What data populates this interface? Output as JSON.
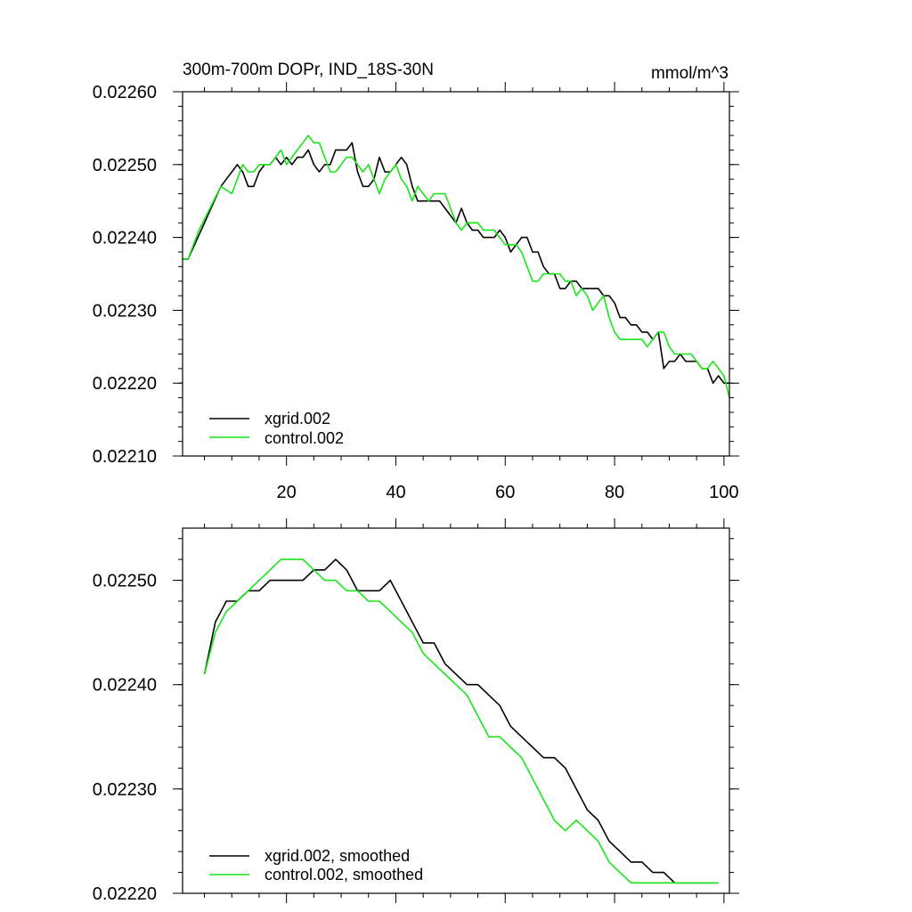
{
  "colors": {
    "xgrid": "#000000",
    "control": "#19e619"
  },
  "chart_data": [
    {
      "type": "line",
      "title": "300m-700m DOPr, IND_18S-30N",
      "units": "mmol/m^3",
      "xlim": [
        1,
        101
      ],
      "ylim": [
        0.0221,
        0.0226
      ],
      "xticks": [
        20,
        40,
        60,
        80,
        100
      ],
      "xtick_labels": [
        "20",
        "40",
        "60",
        "80",
        "100"
      ],
      "yticks": [
        0.0221,
        0.0222,
        0.0223,
        0.0224,
        0.0225,
        0.0226
      ],
      "ytick_labels": [
        "0.02210",
        "0.02220",
        "0.02230",
        "0.02240",
        "0.02250",
        "0.02260"
      ],
      "legend_position": "bottom-left",
      "series": [
        {
          "name": "xgrid.002",
          "color": "#000000",
          "x": [
            1,
            2,
            5,
            8,
            9,
            10,
            11,
            12,
            13,
            14,
            15,
            16,
            17,
            18,
            19,
            20,
            21,
            22,
            23,
            24,
            25,
            26,
            27,
            28,
            29,
            30,
            31,
            32,
            33,
            34,
            35,
            36,
            37,
            38,
            39,
            40,
            41,
            42,
            43,
            44,
            45,
            46,
            47,
            48,
            49,
            50,
            51,
            52,
            53,
            54,
            55,
            56,
            57,
            58,
            59,
            60,
            61,
            62,
            63,
            64,
            65,
            66,
            67,
            68,
            69,
            70,
            71,
            72,
            73,
            74,
            75,
            76,
            77,
            78,
            79,
            80,
            81,
            82,
            83,
            84,
            85,
            86,
            87,
            88,
            89,
            90,
            91,
            92,
            93,
            94,
            95,
            96,
            97,
            98,
            99,
            100,
            101
          ],
          "y": [
            0.02237,
            0.02237,
            0.02242,
            0.02247,
            0.02248,
            0.02249,
            0.0225,
            0.02249,
            0.02247,
            0.02247,
            0.02249,
            0.0225,
            0.0225,
            0.02251,
            0.0225,
            0.02251,
            0.0225,
            0.02251,
            0.02251,
            0.02252,
            0.0225,
            0.02249,
            0.0225,
            0.0225,
            0.02252,
            0.02252,
            0.02252,
            0.02253,
            0.02249,
            0.02247,
            0.02247,
            0.02248,
            0.02251,
            0.02249,
            0.02249,
            0.0225,
            0.02251,
            0.0225,
            0.02247,
            0.02245,
            0.02245,
            0.02245,
            0.02245,
            0.02245,
            0.02244,
            0.02243,
            0.02242,
            0.02244,
            0.02242,
            0.02241,
            0.02241,
            0.0224,
            0.0224,
            0.0224,
            0.02241,
            0.0224,
            0.02238,
            0.02239,
            0.0224,
            0.0224,
            0.02238,
            0.02238,
            0.02236,
            0.02235,
            0.02235,
            0.02233,
            0.02233,
            0.02234,
            0.02234,
            0.02233,
            0.02233,
            0.02233,
            0.02233,
            0.02232,
            0.02232,
            0.02231,
            0.02229,
            0.02229,
            0.02228,
            0.02228,
            0.02227,
            0.02227,
            0.02226,
            0.02227,
            0.02222,
            0.02223,
            0.02223,
            0.02224,
            0.02223,
            0.02223,
            0.02223,
            0.02222,
            0.02222,
            0.0222,
            0.02221,
            0.0222,
            0.0222
          ]
        },
        {
          "name": "control.002",
          "color": "#19e619",
          "x": [
            1,
            2,
            4,
            6,
            8,
            10,
            11,
            12,
            13,
            14,
            15,
            16,
            17,
            18,
            19,
            20,
            21,
            22,
            23,
            24,
            25,
            26,
            27,
            28,
            29,
            30,
            31,
            32,
            33,
            34,
            35,
            36,
            37,
            38,
            39,
            40,
            41,
            42,
            43,
            44,
            45,
            46,
            47,
            48,
            49,
            50,
            51,
            52,
            53,
            54,
            55,
            56,
            57,
            58,
            59,
            60,
            61,
            62,
            63,
            64,
            65,
            66,
            67,
            68,
            69,
            70,
            71,
            72,
            73,
            74,
            75,
            76,
            77,
            78,
            79,
            80,
            81,
            82,
            83,
            84,
            85,
            86,
            87,
            88,
            89,
            90,
            91,
            92,
            93,
            94,
            95,
            96,
            97,
            98,
            99,
            100,
            101
          ],
          "y": [
            0.02237,
            0.02237,
            0.02241,
            0.02244,
            0.02247,
            0.02246,
            0.02248,
            0.0225,
            0.02249,
            0.02249,
            0.0225,
            0.0225,
            0.0225,
            0.02251,
            0.02252,
            0.0225,
            0.02251,
            0.02252,
            0.02253,
            0.02254,
            0.02253,
            0.02253,
            0.02251,
            0.02249,
            0.02249,
            0.0225,
            0.02251,
            0.02251,
            0.0225,
            0.02249,
            0.0225,
            0.02248,
            0.02246,
            0.02248,
            0.02249,
            0.0225,
            0.02248,
            0.02247,
            0.02245,
            0.02247,
            0.02246,
            0.02245,
            0.02246,
            0.02246,
            0.02246,
            0.02244,
            0.02242,
            0.02241,
            0.02242,
            0.02242,
            0.02242,
            0.02241,
            0.02241,
            0.02241,
            0.0224,
            0.02239,
            0.02239,
            0.02239,
            0.02238,
            0.02236,
            0.02234,
            0.02234,
            0.02235,
            0.02235,
            0.02235,
            0.02235,
            0.02234,
            0.02234,
            0.02232,
            0.02233,
            0.02232,
            0.0223,
            0.02231,
            0.02232,
            0.02229,
            0.02227,
            0.02226,
            0.02226,
            0.02226,
            0.02226,
            0.02226,
            0.02225,
            0.02226,
            0.02227,
            0.02227,
            0.02225,
            0.02224,
            0.02224,
            0.02224,
            0.02224,
            0.02223,
            0.02222,
            0.02222,
            0.02223,
            0.02222,
            0.02221,
            0.02218
          ]
        }
      ]
    },
    {
      "type": "line",
      "title": "",
      "xlim": [
        1,
        101
      ],
      "ylim": [
        0.0222,
        0.02255
      ],
      "yticks": [
        0.0222,
        0.0223,
        0.0224,
        0.0225
      ],
      "ytick_labels": [
        "0.02220",
        "0.02230",
        "0.02240",
        "0.02250"
      ],
      "legend_position": "bottom-left",
      "series": [
        {
          "name": "xgrid.002, smoothed",
          "color": "#000000",
          "x": [
            5,
            7,
            8,
            9,
            11,
            13,
            15,
            17,
            19,
            21,
            23,
            25,
            27,
            29,
            31,
            33,
            35,
            37,
            39,
            41,
            43,
            45,
            47,
            49,
            51,
            53,
            55,
            57,
            59,
            61,
            63,
            65,
            67,
            69,
            71,
            73,
            75,
            77,
            79,
            81,
            83,
            85,
            87,
            89,
            91,
            93,
            95,
            97,
            99
          ],
          "y": [
            0.02241,
            0.02246,
            0.02247,
            0.02248,
            0.02248,
            0.02249,
            0.02249,
            0.0225,
            0.0225,
            0.0225,
            0.0225,
            0.02251,
            0.02251,
            0.02252,
            0.02251,
            0.02249,
            0.02249,
            0.02249,
            0.0225,
            0.02248,
            0.02246,
            0.02244,
            0.02244,
            0.02242,
            0.02241,
            0.0224,
            0.0224,
            0.02239,
            0.02238,
            0.02236,
            0.02235,
            0.02234,
            0.02233,
            0.02233,
            0.02232,
            0.0223,
            0.02228,
            0.02227,
            0.02225,
            0.02224,
            0.02223,
            0.02223,
            0.02222,
            0.02222,
            0.02221,
            0.02221,
            0.02221,
            0.02221,
            0.02221
          ]
        },
        {
          "name": "control.002, smoothed",
          "color": "#19e619",
          "x": [
            5,
            7,
            9,
            11,
            13,
            15,
            17,
            19,
            21,
            23,
            25,
            27,
            29,
            31,
            33,
            35,
            37,
            39,
            41,
            43,
            45,
            47,
            49,
            51,
            53,
            55,
            57,
            59,
            61,
            63,
            65,
            67,
            69,
            71,
            73,
            75,
            77,
            79,
            81,
            83,
            85,
            87,
            89,
            91,
            93,
            95,
            97,
            99
          ],
          "y": [
            0.02241,
            0.02245,
            0.02247,
            0.02248,
            0.02249,
            0.0225,
            0.02251,
            0.02252,
            0.02252,
            0.02252,
            0.02251,
            0.0225,
            0.0225,
            0.02249,
            0.02249,
            0.02248,
            0.02248,
            0.02247,
            0.02246,
            0.02245,
            0.02243,
            0.02242,
            0.02241,
            0.0224,
            0.02239,
            0.02237,
            0.02235,
            0.02235,
            0.02234,
            0.02233,
            0.02231,
            0.02229,
            0.02227,
            0.02226,
            0.02227,
            0.02226,
            0.02225,
            0.02223,
            0.02222,
            0.02221,
            0.02221,
            0.02221,
            0.02221,
            0.02221,
            0.02221,
            0.02221,
            0.02221,
            0.02221
          ]
        }
      ]
    }
  ]
}
